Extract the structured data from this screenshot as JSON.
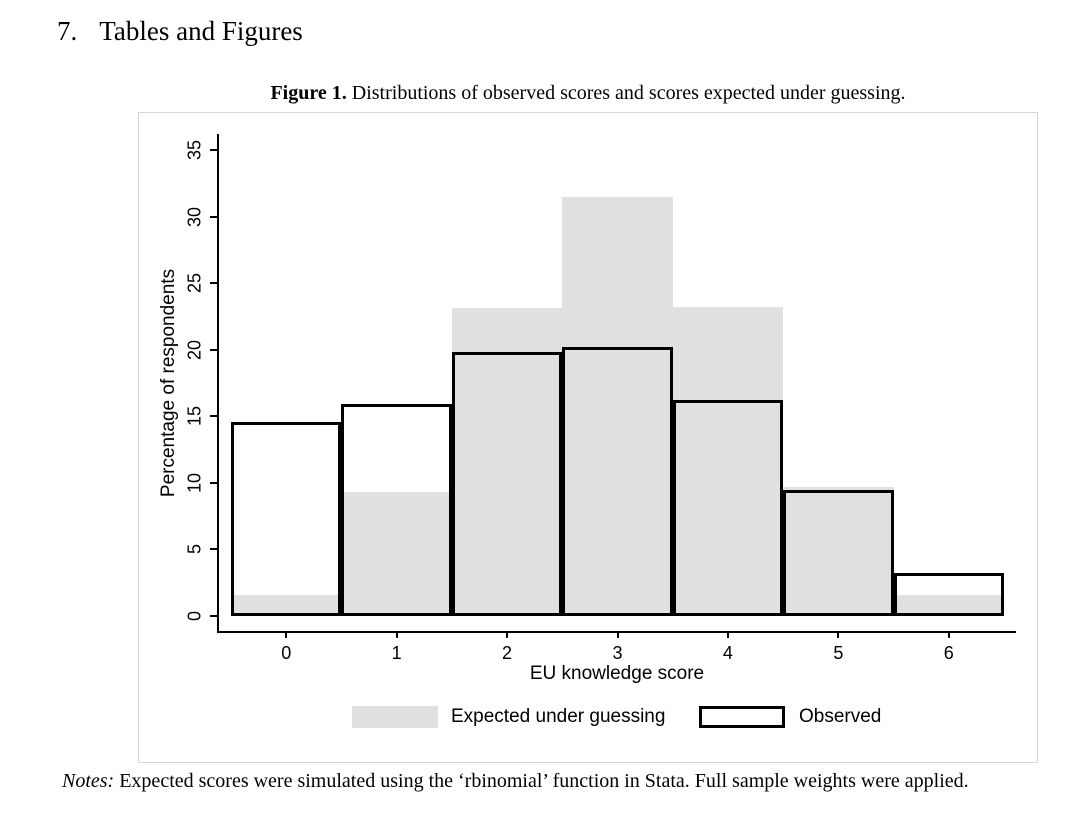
{
  "page": {
    "heading_number": "7.",
    "heading_text": "Tables and Figures",
    "caption_label": "Figure 1.",
    "caption_text": " Distributions of observed scores and scores expected under guessing.",
    "notes_label": "Notes:",
    "notes_text": " Expected scores were simulated using the ‘rbinomial’ function in Stata. Full sample weights were applied."
  },
  "chart_data": {
    "type": "bar",
    "title": "Figure 1. Distributions of observed scores and scores expected under guessing.",
    "categories": [
      "0",
      "1",
      "2",
      "3",
      "4",
      "5",
      "6"
    ],
    "series": [
      {
        "name": "Expected under guessing",
        "style": "filled",
        "fill": "#e0e0e0",
        "values": [
          1.6,
          9.3,
          23.1,
          31.5,
          23.2,
          9.7,
          1.6
        ]
      },
      {
        "name": "Observed",
        "style": "hollow-outline",
        "stroke": "#000000",
        "values": [
          14.6,
          15.9,
          19.8,
          20.2,
          16.2,
          9.5,
          3.2
        ]
      }
    ],
    "xlabel": "EU knowledge score",
    "ylabel": "Percentage of respondents",
    "ylim": [
      0,
      35
    ],
    "yticks": [
      0,
      5,
      10,
      15,
      20,
      25,
      30,
      35
    ],
    "bar_width": 1.0,
    "grid": false,
    "legend_position": "bottom",
    "colors": {
      "expected_fill": "#e0e0e0",
      "observed_stroke": "#000000",
      "axis": "#000000"
    }
  }
}
